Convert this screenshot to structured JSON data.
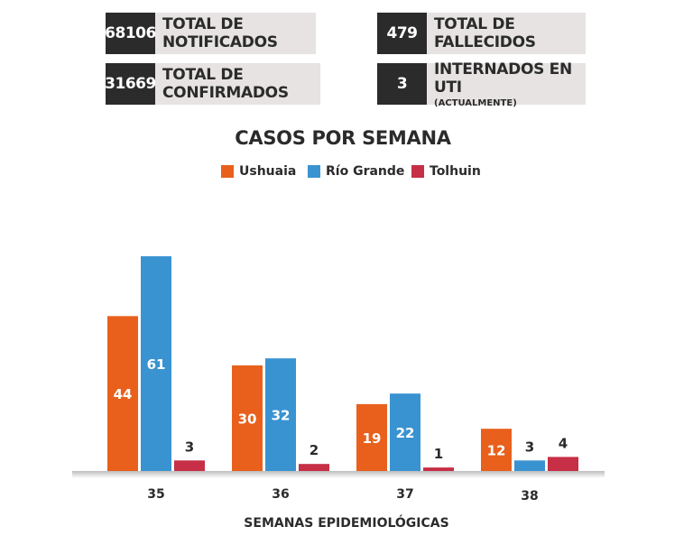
{
  "stats": {
    "notificados": {
      "value": "68106",
      "label": "TOTAL DE NOTIFICADOS"
    },
    "confirmados": {
      "value": "31669",
      "label": "TOTAL DE CONFIRMADOS"
    },
    "fallecidos": {
      "value": "479",
      "label": "TOTAL DE FALLECIDOS"
    },
    "uti": {
      "value": "3",
      "label": "INTERNADOS EN UTI",
      "sublabel": "(ACTUALMENTE)"
    }
  },
  "colors": {
    "ushuaia": "#e8601c",
    "rio_grande": "#3a93d1",
    "tolhuin": "#c62f46"
  },
  "chart_data": {
    "type": "bar",
    "title": "CASOS POR SEMANA",
    "xlabel": "SEMANAS EPIDEMIOLÓGICAS",
    "ylabel": "",
    "categories": [
      "35",
      "36",
      "37",
      "38"
    ],
    "series": [
      {
        "name": "Ushuaia",
        "values": [
          44,
          30,
          19,
          12
        ]
      },
      {
        "name": "Río Grande",
        "values": [
          61,
          32,
          22,
          3
        ]
      },
      {
        "name": "Tolhuin",
        "values": [
          3,
          2,
          1,
          4
        ]
      }
    ],
    "legend": "top-center",
    "grid": false,
    "ylim": [
      0,
      61
    ]
  }
}
